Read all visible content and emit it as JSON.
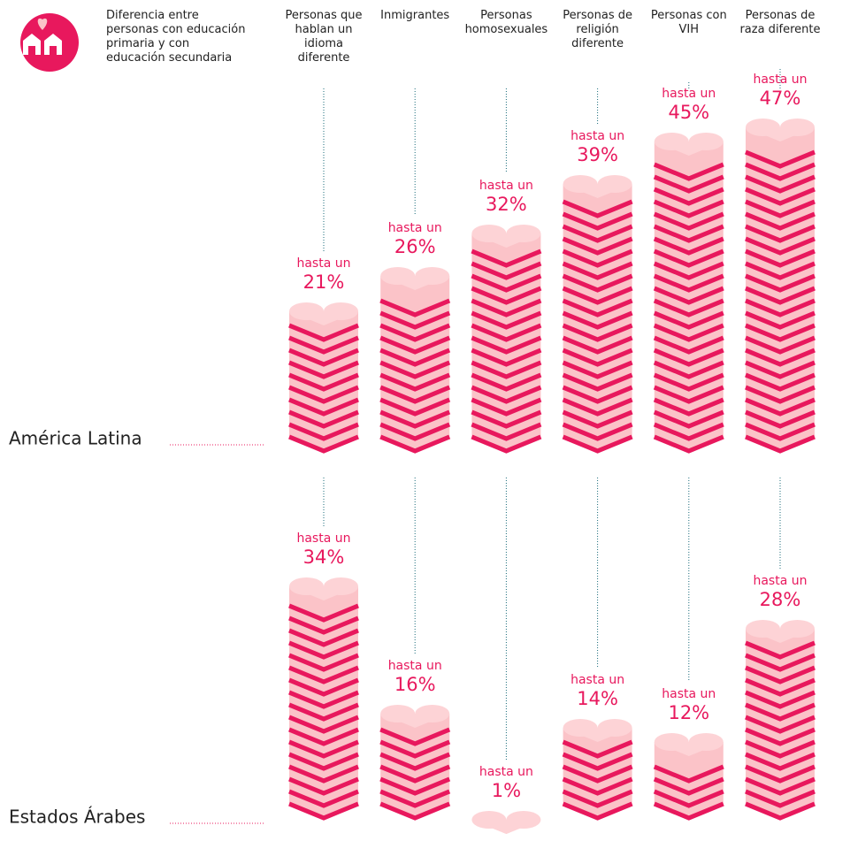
{
  "chart_data": {
    "type": "pictorial-bar",
    "subtitle": "Diferencia entre personas con educación primaria y con educación secundaria",
    "categories": [
      "Personas que hablan un idioma diferente",
      "Inmigrantes",
      "Personas homosexuales",
      "Personas de religión diferente",
      "Personas con VIH",
      "Personas de raza diferente"
    ],
    "value_prefix": "hasta un",
    "series": [
      {
        "name": "América Latina",
        "color": "#e8185d",
        "values": [
          21,
          26,
          32,
          39,
          45,
          47
        ],
        "value_labels": [
          "21%",
          "26%",
          "32%",
          "39%",
          "45%",
          "47%"
        ]
      },
      {
        "name": "Estados Árabes",
        "color": "#e8185d",
        "values": [
          34,
          16,
          1,
          14,
          12,
          28
        ],
        "value_labels": [
          "34%",
          "16%",
          "1%",
          "14%",
          "12%",
          "28%"
        ]
      }
    ]
  }
}
